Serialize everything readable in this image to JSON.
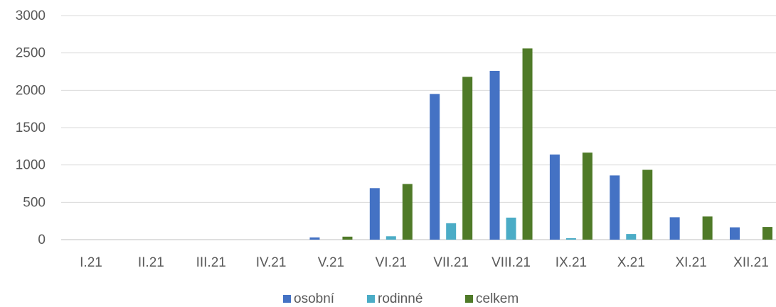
{
  "chart_data": {
    "type": "bar",
    "categories": [
      "I.21",
      "II.21",
      "III.21",
      "IV.21",
      "V.21",
      "VI.21",
      "VII.21",
      "VIII.21",
      "IX.21",
      "X.21",
      "XI.21",
      "XII.21"
    ],
    "series": [
      {
        "name": "osobní",
        "color": "#4472c4",
        "values": [
          0,
          0,
          0,
          0,
          30,
          690,
          1950,
          2260,
          1140,
          860,
          300,
          165
        ]
      },
      {
        "name": "rodinné",
        "color": "#4bacc6",
        "values": [
          0,
          0,
          0,
          0,
          0,
          45,
          220,
          295,
          20,
          75,
          0,
          0
        ]
      },
      {
        "name": "celkem",
        "color": "#4f7a28",
        "values": [
          0,
          0,
          0,
          0,
          40,
          745,
          2180,
          2560,
          1165,
          935,
          310,
          170
        ]
      }
    ],
    "yticks": [
      0,
      500,
      1000,
      1500,
      2000,
      2500,
      3000
    ],
    "ylim": [
      0,
      3000
    ],
    "grid": true,
    "legend": "bottom-center"
  }
}
